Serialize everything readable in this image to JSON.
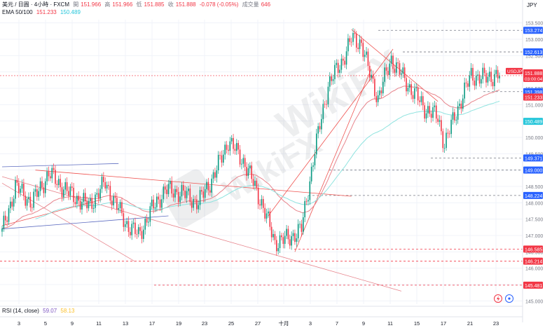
{
  "header": {
    "symbol_line": "美元 / 日圓 · 4小時 · FXCM",
    "open_label": "開",
    "open": "151.966",
    "high_label": "高",
    "high": "151.966",
    "low_label": "低",
    "low": "151.885",
    "close_label": "收",
    "close": "151.888",
    "change": "-0.078 (-0.05%)",
    "volume_label": "成交量",
    "volume": "646",
    "ema_label": "EMA 50/100",
    "ema50": "151.233",
    "ema100": "150.489",
    "currency": "JPY",
    "rsi_label": "RSI (14, close)",
    "rsi_value": "59.07",
    "rsi_ma": "58.13"
  },
  "chart_data": {
    "type": "candlestick",
    "symbol": "USDJPY",
    "timeframe": "4h",
    "ylim": [
      144.9,
      153.6
    ],
    "y_ticks": [
      145.0,
      145.5,
      146.0,
      146.5,
      147.0,
      147.5,
      148.0,
      148.5,
      149.0,
      149.5,
      150.0,
      150.5,
      151.0,
      151.5,
      152.0,
      152.5,
      153.0,
      153.5
    ],
    "y_tick_labels": [
      "145.000",
      "145.500",
      "146.000",
      "146.500",
      "147.000",
      "147.500",
      "148.000",
      "148.500",
      "149.000",
      "149.500",
      "150.000",
      "150.500",
      "151.000",
      "151.500",
      "152.000",
      "152.500",
      "153.000",
      "153.500"
    ],
    "x_tick_labels": [
      "3",
      "5",
      "9",
      "11",
      "13",
      "17",
      "19",
      "23",
      "25",
      "27",
      "十月",
      "3",
      "7",
      "9",
      "11",
      "15",
      "17",
      "21",
      "23"
    ],
    "price_anchors": [
      [
        0,
        147.1
      ],
      [
        8,
        148.5
      ],
      [
        18,
        148.0
      ],
      [
        28,
        148.9
      ],
      [
        40,
        148.3
      ],
      [
        52,
        147.9
      ],
      [
        62,
        148.6
      ],
      [
        74,
        147.4
      ],
      [
        82,
        147.0
      ],
      [
        90,
        147.8
      ],
      [
        98,
        148.4
      ],
      [
        108,
        148.3
      ],
      [
        118,
        148.0
      ],
      [
        128,
        148.9
      ],
      [
        136,
        149.9
      ],
      [
        146,
        149.2
      ],
      [
        156,
        148.0
      ],
      [
        164,
        146.8
      ],
      [
        172,
        146.9
      ],
      [
        180,
        147.2
      ],
      [
        188,
        149.6
      ],
      [
        196,
        151.6
      ],
      [
        204,
        152.3
      ],
      [
        210,
        153.0
      ],
      [
        216,
        152.9
      ],
      [
        220,
        152.1
      ],
      [
        226,
        151.2
      ],
      [
        234,
        152.4
      ],
      [
        244,
        151.6
      ],
      [
        254,
        150.9
      ],
      [
        262,
        150.6
      ],
      [
        266,
        149.8
      ],
      [
        274,
        150.9
      ],
      [
        282,
        151.9
      ],
      [
        290,
        151.8
      ],
      [
        296,
        151.9
      ]
    ],
    "price_levels": [
      {
        "value": 153.274,
        "label": "153.274",
        "kind": "support-resistance"
      },
      {
        "value": 152.613,
        "label": "152.613",
        "kind": "support-resistance"
      },
      {
        "value": 151.398,
        "label": "151.398",
        "kind": "support-resistance"
      },
      {
        "value": 149.371,
        "label": "149.371",
        "kind": "support-resistance"
      },
      {
        "value": 149.0,
        "label": "149.000",
        "kind": "support-resistance"
      },
      {
        "value": 148.224,
        "label": "148.224",
        "kind": "support-resistance"
      },
      {
        "value": 146.585,
        "label": "146.585",
        "kind": "support-resistance"
      },
      {
        "value": 146.214,
        "label": "146.214",
        "kind": "support-resistance"
      },
      {
        "value": 145.481,
        "label": "145.481",
        "kind": "support-resistance"
      }
    ],
    "series": [
      {
        "name": "USDJPY",
        "last_value": 151.888,
        "color": "#f23645",
        "countdown": "03:00:04"
      },
      {
        "name": "EMA 50",
        "last_value": 151.233,
        "color": "#f23645"
      },
      {
        "name": "EMA 100",
        "last_value": 150.489,
        "color": "#26c6da"
      }
    ],
    "colors": {
      "up": "#089981",
      "down": "#f23645",
      "ema50": "#e7838b",
      "ema100": "#8fe3df",
      "level_label": "#2962ff",
      "grid": "#f0f3fa"
    }
  },
  "watermark": "WikiFX"
}
